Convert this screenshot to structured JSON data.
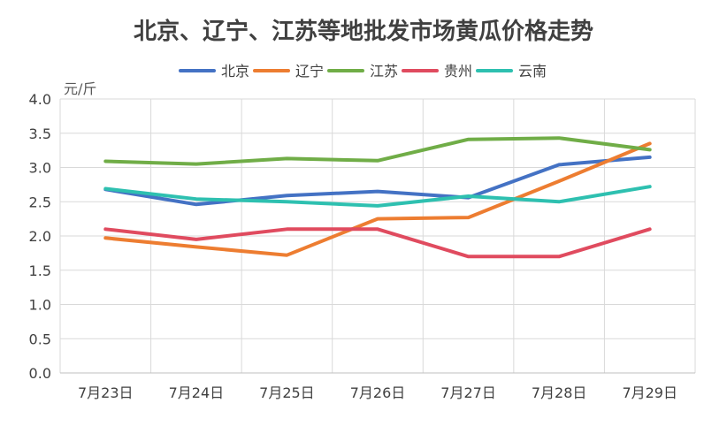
{
  "chart_data": {
    "type": "line",
    "title": "北京、辽宁、江苏等地批发市场黄瓜价格走势",
    "ylabel": "元/斤",
    "xlabel": "",
    "categories": [
      "7月23日",
      "7月24日",
      "7月25日",
      "7月26日",
      "7月27日",
      "7月28日",
      "7月29日"
    ],
    "ylim": [
      0,
      4.0
    ],
    "yticks": [
      "0.0",
      "0.5",
      "1.0",
      "1.5",
      "2.0",
      "2.5",
      "3.0",
      "3.5",
      "4.0"
    ],
    "grid": true,
    "legend_position": "top",
    "series": [
      {
        "name": "北京",
        "color": "#4472c4",
        "values": [
          2.68,
          2.46,
          2.59,
          2.65,
          2.56,
          3.04,
          3.15
        ]
      },
      {
        "name": "辽宁",
        "color": "#ed7d31",
        "values": [
          1.97,
          1.84,
          1.72,
          2.25,
          2.27,
          2.8,
          3.35
        ]
      },
      {
        "name": "江苏",
        "color": "#70ad47",
        "values": [
          3.09,
          3.05,
          3.13,
          3.1,
          3.41,
          3.43,
          3.26
        ]
      },
      {
        "name": "贵州",
        "color": "#e04b5f",
        "values": [
          2.1,
          1.95,
          2.1,
          2.1,
          1.7,
          1.7,
          2.1
        ]
      },
      {
        "name": "云南",
        "color": "#2ec0b0",
        "values": [
          2.69,
          2.54,
          2.5,
          2.44,
          2.58,
          2.5,
          2.72
        ]
      }
    ]
  }
}
